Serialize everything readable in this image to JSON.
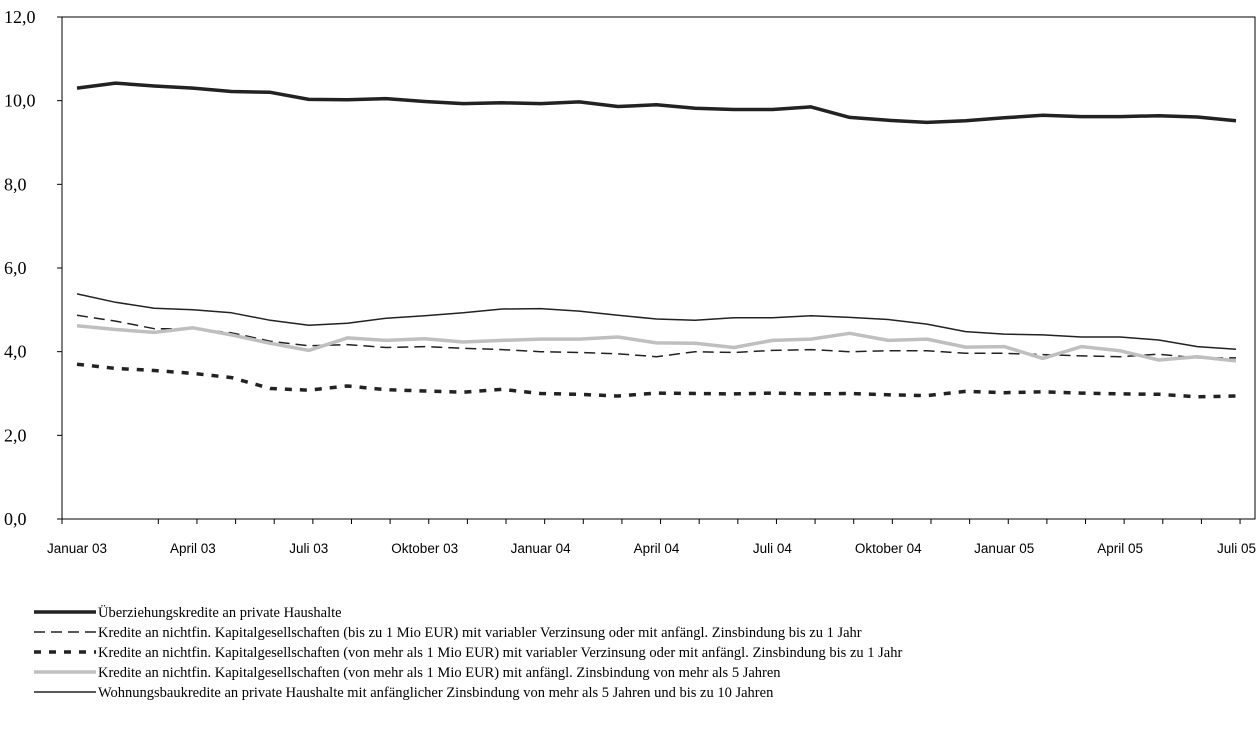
{
  "chart_data": {
    "type": "line",
    "title": "",
    "xlabel": "",
    "ylabel": "",
    "ylim": [
      0,
      12
    ],
    "yticks": [
      "0,0",
      "2,0",
      "4,0",
      "6,0",
      "8,0",
      "10,0",
      "12,0"
    ],
    "y_tick_values": [
      0,
      2,
      4,
      6,
      8,
      10,
      12
    ],
    "x_period_count": 31,
    "x_tick_labels": [
      {
        "label": "Januar 03",
        "index": 0
      },
      {
        "label": "April 03",
        "index": 3
      },
      {
        "label": "Juli 03",
        "index": 6
      },
      {
        "label": "Oktober 03",
        "index": 9
      },
      {
        "label": "Januar 04",
        "index": 12
      },
      {
        "label": "April 04",
        "index": 15
      },
      {
        "label": "Juli 04",
        "index": 18
      },
      {
        "label": "Oktober 04",
        "index": 21
      },
      {
        "label": "Januar 05",
        "index": 24
      },
      {
        "label": "April 05",
        "index": 27
      },
      {
        "label": "Juli 05",
        "index": 30
      }
    ],
    "grid": false,
    "legend_position": "bottom",
    "series": [
      {
        "name": "Überziehungskredite an private Haushalte",
        "color": "#222222",
        "style": "solid-thick",
        "values": [
          10.3,
          10.42,
          10.35,
          10.3,
          10.22,
          10.2,
          10.03,
          10.02,
          10.05,
          9.98,
          9.93,
          9.95,
          9.93,
          9.97,
          9.86,
          9.9,
          9.82,
          9.79,
          9.79,
          9.85,
          9.6,
          9.53,
          9.48,
          9.52,
          9.59,
          9.65,
          9.62,
          9.62,
          9.64,
          9.61,
          9.52
        ]
      },
      {
        "name": "Kredite an nichtfin. Kapitalgesellschaften (bis zu 1 Mio EUR) mit variabler Verzinsung oder mit anfängl. Zinsbindung bis zu 1 Jahr",
        "color": "#222222",
        "style": "long-dash",
        "values": [
          4.87,
          4.73,
          4.55,
          4.55,
          4.45,
          4.25,
          4.14,
          4.17,
          4.1,
          4.12,
          4.08,
          4.05,
          4.0,
          3.98,
          3.95,
          3.88,
          4.0,
          3.98,
          4.03,
          4.05,
          4.0,
          4.02,
          4.02,
          3.96,
          3.96,
          3.93,
          3.9,
          3.88,
          3.94,
          3.85,
          3.85
        ]
      },
      {
        "name": "Kredite an nichtfin. Kapitalgesellschaften (von mehr als 1 Mio EUR) mit variabler Verzinsung oder mit anfängl. Zinsbindung bis zu 1 Jahr",
        "color": "#222222",
        "style": "short-dash-thick",
        "values": [
          3.7,
          3.6,
          3.55,
          3.48,
          3.38,
          3.12,
          3.08,
          3.18,
          3.09,
          3.06,
          3.03,
          3.1,
          3.0,
          2.98,
          2.94,
          3.01,
          3.0,
          2.99,
          3.01,
          2.99,
          3.0,
          2.97,
          2.95,
          3.05,
          3.02,
          3.04,
          3.01,
          2.99,
          2.98,
          2.92,
          2.94
        ]
      },
      {
        "name": "Kredite an nichtfin. Kapitalgesellschaften (von mehr als 1 Mio EUR) mit anfängl. Zinsbindung von mehr als 5 Jahren",
        "color": "#bfbfbf",
        "style": "solid-thick",
        "values": [
          4.62,
          4.53,
          4.46,
          4.57,
          4.4,
          4.2,
          4.03,
          4.33,
          4.27,
          4.31,
          4.23,
          4.27,
          4.3,
          4.3,
          4.35,
          4.21,
          4.2,
          4.1,
          4.27,
          4.3,
          4.44,
          4.27,
          4.3,
          4.11,
          4.12,
          3.84,
          4.12,
          4.02,
          3.8,
          3.88,
          3.78
        ]
      },
      {
        "name": "Wohnungsbaukredite an private Haushalte mit anfänglicher Zinsbindung von mehr als 5 Jahren und bis zu 10 Jahren",
        "color": "#222222",
        "style": "solid-thin",
        "values": [
          5.38,
          5.18,
          5.04,
          5.0,
          4.93,
          4.75,
          4.63,
          4.68,
          4.8,
          4.86,
          4.93,
          5.02,
          5.03,
          4.97,
          4.87,
          4.78,
          4.75,
          4.81,
          4.81,
          4.86,
          4.82,
          4.77,
          4.66,
          4.48,
          4.42,
          4.4,
          4.35,
          4.35,
          4.28,
          4.12,
          4.06
        ]
      }
    ]
  }
}
